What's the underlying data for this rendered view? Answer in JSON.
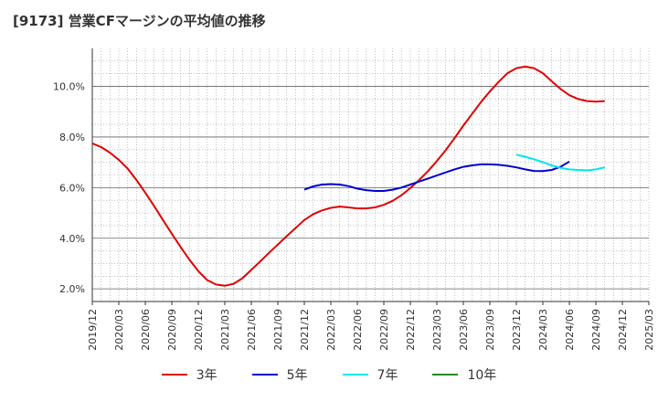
{
  "title": "[9173]  営業CFマージンの平均値の推移",
  "chart_data": {
    "type": "line",
    "title": "[9173]  営業CFマージンの平均値の推移",
    "xlabel": "",
    "ylabel": "",
    "x_ticks": [
      "2019/12",
      "2020/03",
      "2020/06",
      "2020/09",
      "2020/12",
      "2021/03",
      "2021/06",
      "2021/09",
      "2021/12",
      "2022/03",
      "2022/06",
      "2022/09",
      "2022/12",
      "2023/03",
      "2023/06",
      "2023/09",
      "2023/12",
      "2024/03",
      "2024/06",
      "2024/09",
      "2024/12",
      "2025/03"
    ],
    "y_ticks": [
      "2.0%",
      "4.0%",
      "6.0%",
      "8.0%",
      "10.0%"
    ],
    "ylim": [
      1.5,
      11.5
    ],
    "grid": true,
    "legend_position": "bottom",
    "series": [
      {
        "name": "3年",
        "color": "#e00000",
        "points": [
          [
            "2019/12",
            7.75
          ],
          [
            "2020/01",
            7.6
          ],
          [
            "2020/02",
            7.38
          ],
          [
            "2020/03",
            7.1
          ],
          [
            "2020/04",
            6.75
          ],
          [
            "2020/05",
            6.3
          ],
          [
            "2020/06",
            5.8
          ],
          [
            "2020/07",
            5.27
          ],
          [
            "2020/08",
            4.72
          ],
          [
            "2020/09",
            4.18
          ],
          [
            "2020/10",
            3.65
          ],
          [
            "2020/11",
            3.15
          ],
          [
            "2020/12",
            2.7
          ],
          [
            "2021/01",
            2.35
          ],
          [
            "2021/02",
            2.17
          ],
          [
            "2021/03",
            2.12
          ],
          [
            "2021/04",
            2.2
          ],
          [
            "2021/05",
            2.42
          ],
          [
            "2021/06",
            2.75
          ],
          [
            "2021/07",
            3.08
          ],
          [
            "2021/08",
            3.42
          ],
          [
            "2021/09",
            3.75
          ],
          [
            "2021/10",
            4.08
          ],
          [
            "2021/11",
            4.4
          ],
          [
            "2021/12",
            4.72
          ],
          [
            "2022/01",
            4.95
          ],
          [
            "2022/02",
            5.1
          ],
          [
            "2022/03",
            5.2
          ],
          [
            "2022/04",
            5.25
          ],
          [
            "2022/05",
            5.22
          ],
          [
            "2022/06",
            5.18
          ],
          [
            "2022/07",
            5.18
          ],
          [
            "2022/08",
            5.22
          ],
          [
            "2022/09",
            5.32
          ],
          [
            "2022/10",
            5.48
          ],
          [
            "2022/11",
            5.7
          ],
          [
            "2022/12",
            5.98
          ],
          [
            "2023/01",
            6.3
          ],
          [
            "2023/02",
            6.65
          ],
          [
            "2023/03",
            7.05
          ],
          [
            "2023/04",
            7.48
          ],
          [
            "2023/05",
            7.95
          ],
          [
            "2023/06",
            8.45
          ],
          [
            "2023/07",
            8.92
          ],
          [
            "2023/08",
            9.38
          ],
          [
            "2023/09",
            9.8
          ],
          [
            "2023/10",
            10.18
          ],
          [
            "2023/11",
            10.52
          ],
          [
            "2023/12",
            10.72
          ],
          [
            "2024/01",
            10.78
          ],
          [
            "2024/02",
            10.72
          ],
          [
            "2024/03",
            10.52
          ],
          [
            "2024/04",
            10.2
          ],
          [
            "2024/05",
            9.9
          ],
          [
            "2024/06",
            9.65
          ],
          [
            "2024/07",
            9.5
          ],
          [
            "2024/08",
            9.42
          ],
          [
            "2024/09",
            9.4
          ],
          [
            "2024/10",
            9.42
          ]
        ]
      },
      {
        "name": "5年",
        "color": "#0000cc",
        "points": [
          [
            "2021/12",
            5.92
          ],
          [
            "2022/01",
            6.05
          ],
          [
            "2022/02",
            6.12
          ],
          [
            "2022/03",
            6.14
          ],
          [
            "2022/04",
            6.12
          ],
          [
            "2022/05",
            6.06
          ],
          [
            "2022/06",
            5.96
          ],
          [
            "2022/07",
            5.9
          ],
          [
            "2022/08",
            5.87
          ],
          [
            "2022/09",
            5.87
          ],
          [
            "2022/10",
            5.92
          ],
          [
            "2022/11",
            6.0
          ],
          [
            "2022/12",
            6.12
          ],
          [
            "2023/01",
            6.24
          ],
          [
            "2023/02",
            6.36
          ],
          [
            "2023/03",
            6.48
          ],
          [
            "2023/04",
            6.6
          ],
          [
            "2023/05",
            6.72
          ],
          [
            "2023/06",
            6.82
          ],
          [
            "2023/07",
            6.88
          ],
          [
            "2023/08",
            6.92
          ],
          [
            "2023/09",
            6.92
          ],
          [
            "2023/10",
            6.9
          ],
          [
            "2023/11",
            6.86
          ],
          [
            "2023/12",
            6.8
          ],
          [
            "2024/01",
            6.72
          ],
          [
            "2024/02",
            6.66
          ],
          [
            "2024/03",
            6.65
          ],
          [
            "2024/04",
            6.7
          ],
          [
            "2024/05",
            6.82
          ],
          [
            "2024/06",
            7.03
          ]
        ]
      },
      {
        "name": "7年",
        "color": "#00e5ee",
        "points": [
          [
            "2023/12",
            7.3
          ],
          [
            "2024/01",
            7.22
          ],
          [
            "2024/02",
            7.12
          ],
          [
            "2024/03",
            7.0
          ],
          [
            "2024/04",
            6.88
          ],
          [
            "2024/05",
            6.78
          ],
          [
            "2024/06",
            6.72
          ],
          [
            "2024/07",
            6.7
          ],
          [
            "2024/08",
            6.68
          ],
          [
            "2024/09",
            6.72
          ],
          [
            "2024/10",
            6.8
          ]
        ]
      },
      {
        "name": "10年",
        "color": "#228b22",
        "points": []
      }
    ]
  }
}
